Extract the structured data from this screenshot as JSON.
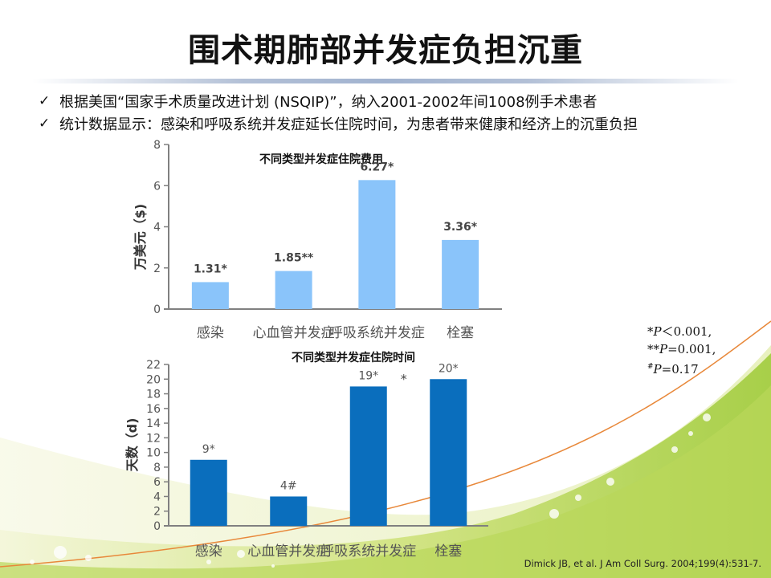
{
  "slide": {
    "title": "围术期肺部并发症负担沉重",
    "bullets": [
      "根据美国“国家手术质量改进计划 (NSQIP)”，纳入2001-2002年间1008例手术患者",
      "统计数据显示：感染和呼吸系统并发症延长住院时间，为患者带来健康和经济上的沉重负担"
    ],
    "check_icon": "✓",
    "notes": [
      {
        "prefix": "*",
        "p": "P",
        "rest": "＜0.001,"
      },
      {
        "prefix": "**",
        "p": "P",
        "rest": "=0.001,"
      },
      {
        "prefix": "#",
        "p": "P",
        "rest": "=0.17"
      }
    ],
    "citation": "Dimick JB, et al. J Am Coll Surg. 2004;199(4):531-7.",
    "colors": {
      "cost_bar": "#8ac4fa",
      "days_bar": "#0a6ebd",
      "axis": "#808080",
      "accent_curve": "#e8883a"
    }
  },
  "chart_data": [
    {
      "type": "bar",
      "title": "不同类型并发症住院费用",
      "ylabel": "万美元（$)",
      "xlabel": "",
      "categories": [
        "感染",
        "心血管并发症",
        "呼吸系统并发症",
        "栓塞"
      ],
      "values": [
        1.31,
        1.85,
        6.27,
        3.36
      ],
      "data_labels": [
        "1.31*",
        "1.85**",
        "6.27*",
        "3.36*"
      ],
      "ylim": [
        0,
        8
      ],
      "yticks": [
        "0",
        "2",
        "4",
        "6",
        "8"
      ],
      "grid": false
    },
    {
      "type": "bar",
      "title": "不同类型并发症住院时间",
      "ylabel": "天数（d)",
      "xlabel": "",
      "categories": [
        "感染",
        "心血管并发症",
        "呼吸系统并发症",
        "栓塞"
      ],
      "values": [
        9,
        4,
        19,
        20
      ],
      "data_labels": [
        "9*",
        "4#",
        "19*",
        "20*"
      ],
      "extra_marker": "*",
      "ylim": [
        0,
        22
      ],
      "yticks": [
        "0",
        "2",
        "4",
        "6",
        "8",
        "10",
        "12",
        "14",
        "16",
        "18",
        "20",
        "22"
      ],
      "grid": false
    }
  ]
}
